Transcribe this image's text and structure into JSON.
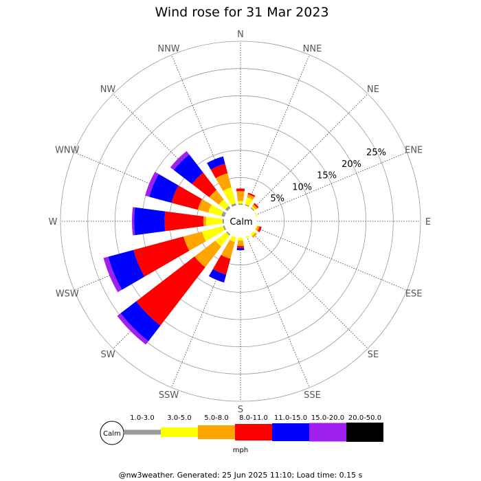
{
  "chart_data": {
    "type": "wind-rose",
    "title": "Wind rose for 31 Mar 2023",
    "directions": [
      "N",
      "NNE",
      "NE",
      "ENE",
      "E",
      "ESE",
      "SE",
      "SSE",
      "S",
      "SSW",
      "SW",
      "WSW",
      "W",
      "WNW",
      "NW",
      "NNW"
    ],
    "ring_labels": [
      "5%",
      "10%",
      "15%",
      "20%",
      "25%"
    ],
    "ring_values": [
      5,
      10,
      15,
      20,
      25
    ],
    "max_percent": 30,
    "calm_label": "Calm",
    "unit_label": "mph",
    "speed_bins": [
      {
        "label": "1.0-3.0",
        "color": "#999999"
      },
      {
        "label": "3.0-5.0",
        "color": "#ffff00"
      },
      {
        "label": "5.0-8.0",
        "color": "#ffa500"
      },
      {
        "label": "8.0-11.0",
        "color": "#ff0000"
      },
      {
        "label": "11.0-15.0",
        "color": "#0000ff"
      },
      {
        "label": "15.0-20.0",
        "color": "#a020f0"
      },
      {
        "label": "20.0-50.0",
        "color": "#000000"
      }
    ],
    "frequencies": {
      "N": [
        0.2,
        0.5,
        1.8,
        0.5,
        0.0,
        0.0,
        0.0
      ],
      "NNE": [
        0.2,
        1.3,
        0.6,
        0.3,
        0.0,
        0.0,
        0.0
      ],
      "NE": [
        0.2,
        0.3,
        0.4,
        0.3,
        0.0,
        0.0,
        0.0
      ],
      "ENE": [
        0.0,
        0.2,
        0.0,
        0.0,
        0.0,
        0.0,
        0.0
      ],
      "E": [
        0.0,
        0.0,
        0.0,
        0.0,
        0.0,
        0.0,
        0.0
      ],
      "ESE": [
        0.0,
        0.2,
        0.4,
        0.4,
        0.0,
        0.0,
        0.0
      ],
      "SE": [
        0.0,
        0.4,
        0.4,
        0.0,
        0.0,
        0.0,
        0.0
      ],
      "SSE": [
        0.0,
        0.2,
        0.0,
        0.0,
        0.0,
        0.0,
        0.0
      ],
      "S": [
        0.0,
        0.5,
        1.0,
        0.4,
        0.4,
        0.0,
        0.0
      ],
      "SSW": [
        0.0,
        0.9,
        3.2,
        3.0,
        1.5,
        0.0,
        0.0
      ],
      "SW": [
        0.3,
        2.5,
        4.8,
        13.5,
        3.6,
        0.8,
        0.0
      ],
      "WSW": [
        0.3,
        4.0,
        3.5,
        9.5,
        4.8,
        0.9,
        0.0
      ],
      "W": [
        0.3,
        3.0,
        0.5,
        7.1,
        5.6,
        0.4,
        0.0
      ],
      "WNW": [
        0.6,
        2.5,
        2.0,
        5.0,
        4.2,
        0.8,
        0.0
      ],
      "NW": [
        0.5,
        1.5,
        2.2,
        4.0,
        4.2,
        0.8,
        0.0
      ],
      "NNW": [
        0.4,
        3.0,
        2.7,
        1.8,
        1.4,
        0.0,
        0.0
      ]
    },
    "footer": "@nw3weather. Generated: 25 Jun 2025 11:10; Load time: 0.15 s"
  }
}
